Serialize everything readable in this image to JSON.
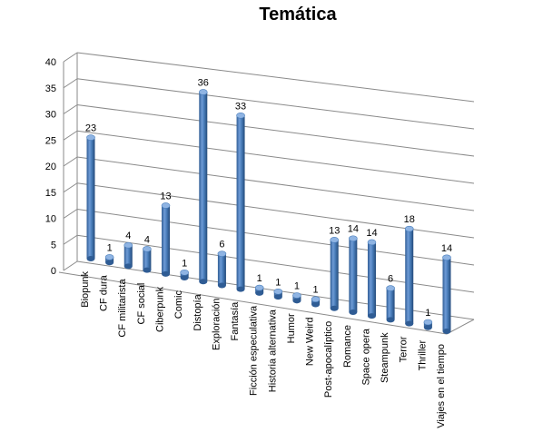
{
  "chart_data": {
    "type": "bar",
    "title": "Temática",
    "xlabel": "",
    "ylabel": "",
    "ylim": [
      0,
      40
    ],
    "yticks": [
      0,
      5,
      10,
      15,
      20,
      25,
      30,
      35,
      40
    ],
    "grid": true,
    "legend": "none",
    "style": "3d-cylinder",
    "bar_color": "#4A7EBB",
    "categories": [
      "Biopunk",
      "CF dura",
      "CF militarista",
      "CF social",
      "Ciberpunk",
      "Comic",
      "Distopía",
      "Exploración",
      "Fantasía",
      "Ficción especulativa",
      "Historia alternativa",
      "Humor",
      "New Weird",
      "Post-apocalíptico",
      "Romance",
      "Space opera",
      "Steampunk",
      "Terror",
      "Thriller",
      "Viajes en el tiempo"
    ],
    "values": [
      23,
      1,
      4,
      4,
      13,
      1,
      36,
      6,
      33,
      1,
      1,
      1,
      1,
      13,
      14,
      14,
      6,
      18,
      1,
      14
    ]
  }
}
